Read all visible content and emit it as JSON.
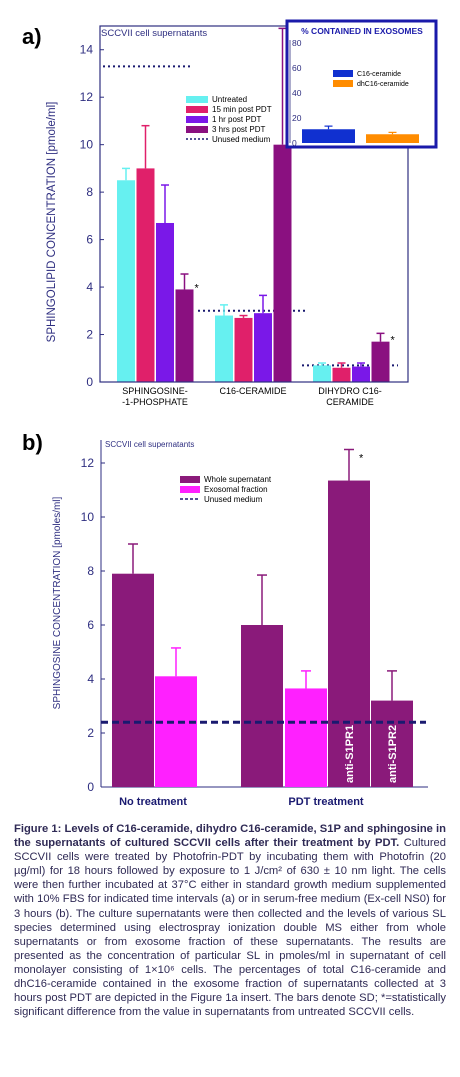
{
  "panel_a": {
    "label": "a)",
    "subtitle": "SCCVII cell supernatants",
    "ylabel": "SPHINGOLIPID CONCENTRATION [pmole/ml]",
    "legend": [
      "Untreated",
      "15 min post PDT",
      "1 hr post PDT",
      "3 hrs post PDT",
      "Unused medium"
    ],
    "inset": {
      "title": "% CONTAINED IN EXOSOMES",
      "legend": [
        "C16-ceramide",
        "dhC16-ceramide"
      ]
    }
  },
  "panel_b": {
    "label": "b)",
    "subtitle": "SCCVII cell supernatants",
    "ylabel": "SPHINGOSINE CONCENTRATION [pmoles/ml]",
    "legend": [
      "Whole supernatant",
      "Exosomal fraction",
      "Unused medium"
    ],
    "groups": [
      "No treatment",
      "PDT treatment"
    ],
    "bar_labels": [
      "anti-S1PR1",
      "anti-S1PR2"
    ]
  },
  "colors": {
    "untreated": "#66f0f0",
    "min15": "#e0206a",
    "hr1": "#7a18e8",
    "hrs3": "#8a1080",
    "c16": "#1030d0",
    "dhc16": "#ff8c00",
    "whole": "#8a1a7a",
    "exosomal": "#ff20ff",
    "axis": "#2e2e80",
    "unused": "#1a1a70"
  },
  "caption": {
    "lead": "Figure 1: Levels of C16-ceramide, dihydro C16-ceramide, S1P and sphingosine in the supernatants of cultured SCCVII cells after their treatment by PDT.",
    "body": "Cultured SCCVII cells were treated by Photofrin-PDT by incubating them with Photofrin (20 µg/ml) for 18 hours followed by exposure to 1 J/cm² of 630 ± 10 nm light. The cells were then further incubated at 37°C either in standard growth medium supplemented with 10% FBS for indicated time intervals (a) or in serum-free medium (Ex-cell NS0) for 3 hours (b). The culture supernatants were then collected and the levels of various SL species determined using electrospray ionization double MS either from whole supernatants or from exosome fraction of these supernatants. The results are presented as the concentration of particular SL in pmoles/ml in supernatant of cell monolayer consisting of 1×10⁶ cells. The percentages of total C16-ceramide and dhC16-ceramide contained in the exosome fraction of supernatants collected at 3 hours post PDT are depicted in the Figure 1a insert. The bars denote SD; *=statistically significant difference from the value in supernatants from untreated SCCVII cells."
  },
  "chart_data": [
    {
      "type": "bar",
      "panel": "a",
      "title": "SCCVII cell supernatants",
      "ylabel": "SPHINGOLIPID CONCENTRATION [pmole/ml]",
      "ylim": [
        0,
        15
      ],
      "yticks": [
        0,
        2,
        4,
        6,
        8,
        10,
        12,
        14
      ],
      "categories": [
        "SPHINGOSINE--1-PHOSPHATE",
        "C16-CERAMIDE",
        "DIHYDRO C16-CERAMIDE"
      ],
      "category_lines": [
        [
          "SPHINGOSINE-",
          "-1-PHOSPHATE"
        ],
        [
          "C16-CERAMIDE"
        ],
        [
          "DIHYDRO C16-",
          "CERAMIDE"
        ]
      ],
      "series": [
        {
          "name": "Untreated",
          "values": [
            8.5,
            2.8,
            0.7
          ],
          "errors": [
            0.5,
            0.45,
            0.1
          ]
        },
        {
          "name": "15 min post PDT",
          "values": [
            9.0,
            2.7,
            0.6
          ],
          "errors": [
            1.8,
            0.1,
            0.2
          ]
        },
        {
          "name": "1 hr post PDT",
          "values": [
            6.7,
            2.9,
            0.65
          ],
          "errors": [
            1.6,
            0.75,
            0.15
          ]
        },
        {
          "name": "3 hrs post PDT",
          "values": [
            3.9,
            10.0,
            1.7
          ],
          "errors": [
            0.65,
            4.9,
            0.35
          ]
        }
      ],
      "significant": [
        [
          false,
          false,
          false
        ],
        [
          false,
          false,
          false
        ],
        [
          false,
          false,
          false
        ],
        [
          true,
          true,
          true
        ]
      ],
      "unused_medium": [
        13.3,
        3.0,
        0.7
      ],
      "legend_position": "upper-middle"
    },
    {
      "type": "bar",
      "panel": "a-inset",
      "title": "% CONTAINED IN EXOSOMES",
      "ylim": [
        0,
        80
      ],
      "yticks": [
        0,
        20,
        40,
        60,
        80
      ],
      "categories": [
        "C16-ceramide",
        "dhC16-ceramide"
      ],
      "values": [
        11,
        7
      ],
      "errors": [
        2.5,
        1.5
      ]
    },
    {
      "type": "bar",
      "panel": "b",
      "title": "SCCVII cell supernatants",
      "ylabel": "SPHINGOSINE CONCENTRATION [pmoles/ml]",
      "ylim": [
        0,
        13
      ],
      "yticks": [
        0,
        2,
        4,
        6,
        8,
        10,
        12
      ],
      "bars": [
        {
          "group": "No treatment",
          "series": "Whole supernatant",
          "value": 7.9,
          "error": 1.1,
          "label": "",
          "star": false
        },
        {
          "group": "No treatment",
          "series": "Exosomal fraction",
          "value": 4.1,
          "error": 1.05,
          "label": "",
          "star": false
        },
        {
          "group": "PDT treatment",
          "series": "Whole supernatant",
          "value": 6.0,
          "error": 1.85,
          "label": "",
          "star": false
        },
        {
          "group": "PDT treatment",
          "series": "Exosomal fraction",
          "value": 3.65,
          "error": 0.65,
          "label": "",
          "star": false
        },
        {
          "group": "PDT treatment",
          "series": "Whole supernatant",
          "value": 11.35,
          "error": 1.15,
          "label": "anti-S1PR1",
          "star": true
        },
        {
          "group": "PDT treatment",
          "series": "Whole supernatant",
          "value": 3.2,
          "error": 1.1,
          "label": "anti-S1PR2",
          "star": false
        }
      ],
      "unused_medium": 2.4
    }
  ]
}
